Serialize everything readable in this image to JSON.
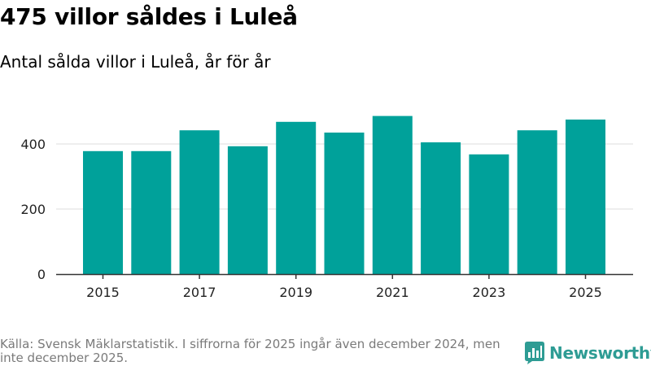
{
  "title": "475 villor såldes i Luleå",
  "subtitle": "Antal sålda villor i Luleå, år för år",
  "footer": {
    "source_text": "Källa: Svensk Mäklarstatistik. I siffrorna för 2025 ingår även december 2024, men inte december 2025."
  },
  "brand": {
    "name": "Newsworthy",
    "icon": "newsworthy-logo-icon"
  },
  "colors": {
    "bar": "#00a19a",
    "grid": "#dddddd",
    "axis": "#333333",
    "brand": "#2e9c94"
  },
  "chart_data": {
    "type": "bar",
    "title": "475 villor såldes i Luleå",
    "subtitle": "Antal sålda villor i Luleå, år för år",
    "xlabel": "",
    "ylabel": "",
    "categories": [
      "2015",
      "2016",
      "2017",
      "2018",
      "2019",
      "2020",
      "2021",
      "2022",
      "2023",
      "2024",
      "2025"
    ],
    "values": [
      378,
      378,
      442,
      393,
      468,
      435,
      486,
      405,
      368,
      442,
      475
    ],
    "ylim": [
      0,
      500
    ],
    "yticks": [
      "0",
      "200",
      "400"
    ],
    "xtick_labels": [
      "2015",
      "2017",
      "2019",
      "2021",
      "2023",
      "2025"
    ],
    "grid": true
  }
}
